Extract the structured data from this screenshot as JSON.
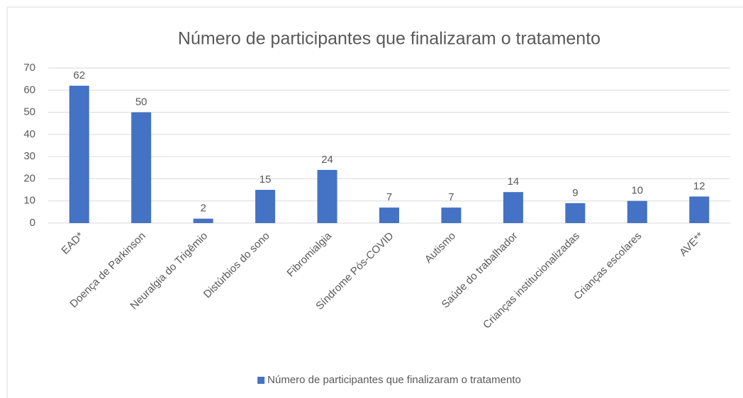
{
  "chart_data": {
    "type": "bar",
    "title": "Número de participantes que finalizaram o tratamento",
    "categories": [
      "EAD*",
      "Doença de Parkinson",
      "Neuralgia do Trigêmio",
      "Distúrbios do sono",
      "Fibromialgia",
      "Síndrome Pós-COVID",
      "Autismo",
      "Saúde do trabalhador",
      "Crianças institucionalizadas",
      "Crianças escolares",
      "AVE**"
    ],
    "series": [
      {
        "name": "Número de participantes que finalizaram o tratamento",
        "color": "#4472c4",
        "values": [
          62,
          50,
          2,
          15,
          24,
          7,
          7,
          14,
          9,
          10,
          12
        ]
      }
    ],
    "ylim": [
      0,
      70
    ],
    "yticks": [
      0,
      10,
      20,
      30,
      40,
      50,
      60,
      70
    ],
    "grid": true,
    "legend": "bottom"
  }
}
